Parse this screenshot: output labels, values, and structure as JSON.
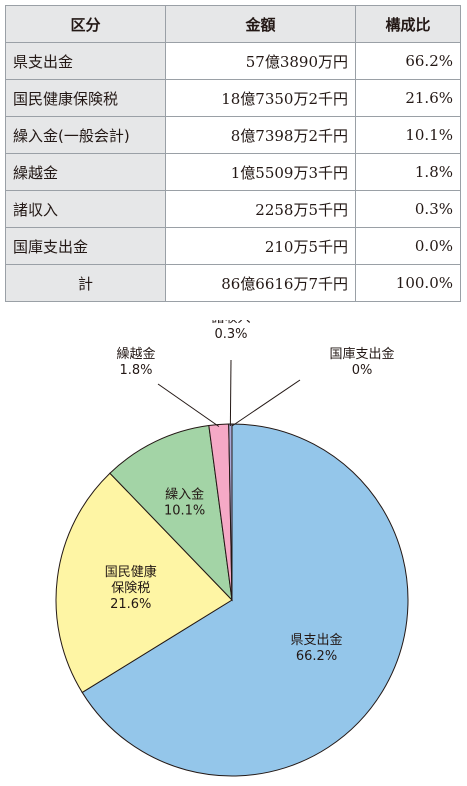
{
  "table": {
    "headers": [
      "区分",
      "金額",
      "構成比"
    ],
    "rows": [
      {
        "label": "県支出金",
        "amount": "57億3890万円",
        "ratio": "66.2%"
      },
      {
        "label": "国民健康保険税",
        "amount": "18億7350万2千円",
        "ratio": "21.6%"
      },
      {
        "label": "繰入金(一般会計)",
        "amount": "8億7398万2千円",
        "ratio": "10.1%"
      },
      {
        "label": "繰越金",
        "amount": "1億5509万3千円",
        "ratio": "1.8%"
      },
      {
        "label": "諸収入",
        "amount": "2258万5千円",
        "ratio": "0.3%"
      },
      {
        "label": "国庫支出金",
        "amount": "210万5千円",
        "ratio": "0.0%"
      }
    ],
    "total": {
      "label": "計",
      "amount": "86億6616万7千円",
      "ratio": "100.0%"
    }
  },
  "chart_data": {
    "type": "pie",
    "title": "",
    "slices": [
      {
        "name": "県支出金",
        "label_lines": [
          "県支出金"
        ],
        "pct_label": "66.2%",
        "value": 66.2,
        "color": "#94c6ea"
      },
      {
        "name": "国民健康保険税",
        "label_lines": [
          "国民健康",
          "保険税"
        ],
        "pct_label": "21.6%",
        "value": 21.6,
        "color": "#fef5a4"
      },
      {
        "name": "繰入金",
        "label_lines": [
          "繰入金"
        ],
        "pct_label": "10.1%",
        "value": 10.1,
        "color": "#a3d4a6"
      },
      {
        "name": "繰越金",
        "label_lines": [
          "繰越金"
        ],
        "pct_label": "1.8%",
        "value": 1.8,
        "color": "#f5a9c6"
      },
      {
        "name": "諸収入",
        "label_lines": [
          "諸収入"
        ],
        "pct_label": "0.3%",
        "value": 0.3,
        "color": "#a9a9d8"
      },
      {
        "name": "国庫支出金",
        "label_lines": [
          "国庫支出金"
        ],
        "pct_label": "0%",
        "value": 0.0,
        "color": "#6c6cae"
      }
    ]
  }
}
